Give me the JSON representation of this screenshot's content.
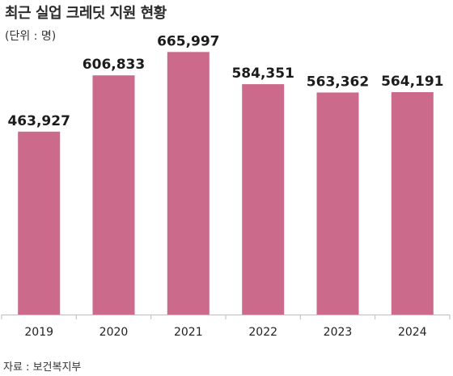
{
  "title": "최근 실업 크레딧 지원 현황",
  "unit_note": "(단위 : 명)",
  "source": "자료 : 보건복지부",
  "colors": {
    "bar": "#cb6a8b",
    "axis": "#bdbdbd"
  },
  "chart_data": {
    "type": "bar",
    "title": "최근 실업 크레딧 지원 현황",
    "categories": [
      "2019",
      "2020",
      "2021",
      "2022",
      "2023",
      "2024"
    ],
    "values": [
      463927,
      606833,
      665997,
      584351,
      563362,
      564191
    ],
    "value_labels": [
      "463,927",
      "606,833",
      "665,997",
      "584,351",
      "563,362",
      "564,191"
    ],
    "ylim": [
      0,
      720000
    ],
    "grid": false,
    "legend": "none"
  }
}
